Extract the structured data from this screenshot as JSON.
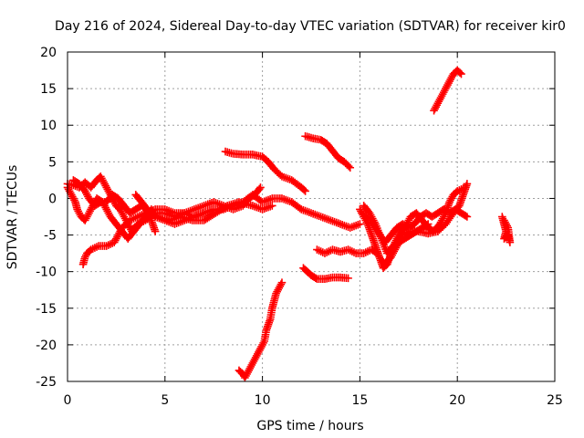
{
  "chart_data": {
    "type": "scatter",
    "title": "Day 216 of 2024, Sidereal Day-to-day VTEC variation (SDTVAR) for receiver kir0",
    "xlabel": "GPS time / hours",
    "ylabel": "SDTVAR / TECUs",
    "xlim": [
      0,
      25
    ],
    "ylim": [
      -25,
      20
    ],
    "xticks": [
      0,
      5,
      10,
      15,
      20,
      25
    ],
    "yticks": [
      -25,
      -20,
      -15,
      -10,
      -5,
      0,
      5,
      10,
      15,
      20
    ],
    "grid": true,
    "marker": "+",
    "series": [
      {
        "name": "SDTVAR",
        "color": "#ff0000",
        "tracks": [
          [
            [
              0.0,
              2.0
            ],
            [
              0.3,
              1.8
            ],
            [
              0.6,
              1.5
            ],
            [
              0.9,
              2.2
            ],
            [
              1.2,
              1.5
            ],
            [
              1.5,
              2.5
            ],
            [
              1.7,
              3.0
            ],
            [
              1.9,
              2.0
            ],
            [
              2.1,
              1.0
            ],
            [
              2.3,
              0.0
            ],
            [
              2.5,
              -1.0
            ],
            [
              2.7,
              -1.5
            ],
            [
              3.0,
              -3.0
            ],
            [
              3.3,
              -4.5
            ],
            [
              3.6,
              -3.5
            ],
            [
              4.0,
              -3.0
            ],
            [
              4.5,
              -2.0
            ],
            [
              5.0,
              -2.0
            ],
            [
              5.5,
              -2.5
            ],
            [
              6.0,
              -2.0
            ],
            [
              6.5,
              -2.5
            ],
            [
              7.0,
              -2.0
            ],
            [
              7.5,
              -1.5
            ],
            [
              8.0,
              -1.5
            ],
            [
              8.5,
              -1.0
            ],
            [
              9.0,
              -0.5
            ],
            [
              9.5,
              0.5
            ],
            [
              10.0,
              -0.5
            ],
            [
              10.5,
              0.0
            ],
            [
              11.0,
              0.0
            ],
            [
              11.5,
              -0.5
            ],
            [
              12.0,
              -1.5
            ],
            [
              12.5,
              -2.0
            ],
            [
              13.0,
              -2.5
            ],
            [
              13.5,
              -3.0
            ],
            [
              14.0,
              -3.5
            ],
            [
              14.5,
              -4.0
            ],
            [
              15.0,
              -3.5
            ]
          ],
          [
            [
              0.0,
              1.5
            ],
            [
              0.2,
              0.5
            ],
            [
              0.4,
              -0.5
            ],
            [
              0.5,
              -1.5
            ],
            [
              0.7,
              -2.5
            ],
            [
              0.9,
              -3.0
            ],
            [
              1.1,
              -2.0
            ],
            [
              1.3,
              -1.0
            ],
            [
              1.5,
              0.0
            ],
            [
              1.8,
              -0.5
            ],
            [
              2.0,
              -1.5
            ],
            [
              2.2,
              -2.5
            ],
            [
              2.5,
              -3.5
            ],
            [
              2.8,
              -4.5
            ],
            [
              3.1,
              -5.5
            ],
            [
              3.4,
              -4.5
            ],
            [
              3.7,
              -3.5
            ],
            [
              4.0,
              -2.5
            ],
            [
              4.3,
              -1.5
            ],
            [
              4.5,
              -2.5
            ],
            [
              5.0,
              -3.0
            ],
            [
              5.5,
              -3.5
            ],
            [
              6.0,
              -3.0
            ],
            [
              6.5,
              -2.5
            ],
            [
              7.0,
              -2.0
            ]
          ],
          [
            [
              0.3,
              2.5
            ],
            [
              0.6,
              2.0
            ],
            [
              0.9,
              1.0
            ],
            [
              1.1,
              0.0
            ],
            [
              1.4,
              -1.0
            ],
            [
              1.7,
              -0.5
            ],
            [
              2.0,
              -0.5
            ],
            [
              2.3,
              0.5
            ],
            [
              2.6,
              0.0
            ],
            [
              2.9,
              -1.0
            ],
            [
              3.2,
              -2.0
            ],
            [
              3.5,
              -1.5
            ],
            [
              3.8,
              -1.0
            ],
            [
              4.2,
              -2.0
            ],
            [
              4.6,
              -2.5
            ],
            [
              5.2,
              -3.0
            ],
            [
              5.8,
              -2.5
            ],
            [
              6.4,
              -3.0
            ],
            [
              7.0,
              -3.0
            ],
            [
              7.6,
              -2.0
            ],
            [
              8.2,
              -1.0
            ],
            [
              8.8,
              -0.5
            ],
            [
              9.5,
              -1.0
            ],
            [
              10.0,
              -1.5
            ],
            [
              10.5,
              -1.0
            ]
          ],
          [
            [
              0.8,
              -9.0
            ],
            [
              0.9,
              -8.0
            ],
            [
              1.0,
              -7.5
            ],
            [
              1.2,
              -7.0
            ],
            [
              1.6,
              -6.5
            ],
            [
              2.0,
              -6.5
            ],
            [
              2.4,
              -6.0
            ],
            [
              2.6,
              -5.0
            ],
            [
              2.8,
              -4.0
            ],
            [
              3.2,
              -3.0
            ],
            [
              3.6,
              -2.5
            ],
            [
              4.0,
              -2.0
            ],
            [
              4.5,
              -1.5
            ],
            [
              5.0,
              -1.5
            ],
            [
              5.5,
              -2.0
            ],
            [
              6.0,
              -2.0
            ],
            [
              6.5,
              -1.5
            ],
            [
              7.0,
              -1.0
            ],
            [
              7.5,
              -0.5
            ],
            [
              8.0,
              -1.0
            ],
            [
              8.5,
              -1.5
            ],
            [
              9.0,
              -1.0
            ],
            [
              9.3,
              0.0
            ],
            [
              9.6,
              0.5
            ],
            [
              9.9,
              1.5
            ]
          ],
          [
            [
              3.5,
              0.5
            ],
            [
              3.8,
              -0.5
            ],
            [
              4.1,
              -1.5
            ],
            [
              4.3,
              -3.0
            ],
            [
              4.5,
              -4.5
            ]
          ],
          [
            [
              8.1,
              6.4
            ],
            [
              8.5,
              6.1
            ],
            [
              9.0,
              6.0
            ],
            [
              9.5,
              6.0
            ],
            [
              10.0,
              5.7
            ],
            [
              10.3,
              5.0
            ],
            [
              10.6,
              4.0
            ],
            [
              11.0,
              3.0
            ],
            [
              11.5,
              2.5
            ],
            [
              12.0,
              1.5
            ],
            [
              12.2,
              1.0
            ]
          ],
          [
            [
              8.8,
              -23.5
            ],
            [
              9.0,
              -24.0
            ],
            [
              9.1,
              -24.5
            ],
            [
              9.3,
              -23.5
            ],
            [
              9.5,
              -22.5
            ],
            [
              9.7,
              -21.5
            ],
            [
              9.9,
              -20.5
            ],
            [
              10.1,
              -19.5
            ],
            [
              10.2,
              -18.0
            ],
            [
              10.4,
              -16.5
            ],
            [
              10.5,
              -15.0
            ],
            [
              10.6,
              -14.0
            ],
            [
              10.7,
              -13.0
            ],
            [
              10.9,
              -12.0
            ],
            [
              11.0,
              -11.5
            ]
          ],
          [
            [
              12.2,
              8.5
            ],
            [
              12.6,
              8.2
            ],
            [
              13.0,
              8.0
            ],
            [
              13.3,
              7.5
            ],
            [
              13.6,
              6.5
            ],
            [
              13.9,
              5.5
            ],
            [
              14.2,
              5.0
            ],
            [
              14.5,
              4.2
            ]
          ],
          [
            [
              12.1,
              -9.5
            ],
            [
              12.3,
              -10.0
            ],
            [
              12.5,
              -10.5
            ],
            [
              12.8,
              -11.0
            ],
            [
              13.2,
              -11.0
            ],
            [
              13.6,
              -10.8
            ],
            [
              14.0,
              -10.8
            ],
            [
              14.4,
              -10.9
            ]
          ],
          [
            [
              12.8,
              -7.0
            ],
            [
              13.2,
              -7.5
            ],
            [
              13.6,
              -7.0
            ],
            [
              14.0,
              -7.3
            ],
            [
              14.4,
              -7.0
            ],
            [
              14.8,
              -7.5
            ],
            [
              15.2,
              -7.5
            ],
            [
              15.6,
              -7.0
            ],
            [
              15.9,
              -7.5
            ],
            [
              16.1,
              -8.5
            ],
            [
              16.3,
              -9.0
            ],
            [
              16.6,
              -8.0
            ],
            [
              16.9,
              -6.5
            ],
            [
              17.2,
              -5.0
            ],
            [
              17.6,
              -4.5
            ],
            [
              18.0,
              -4.5
            ],
            [
              18.5,
              -4.8
            ],
            [
              19.0,
              -4.5
            ],
            [
              19.4,
              -3.5
            ],
            [
              19.8,
              -2.0
            ],
            [
              20.1,
              -1.0
            ],
            [
              20.3,
              0.5
            ],
            [
              20.5,
              2.0
            ]
          ],
          [
            [
              15.0,
              -1.5
            ],
            [
              15.2,
              -2.5
            ],
            [
              15.4,
              -3.5
            ],
            [
              15.6,
              -5.0
            ],
            [
              15.8,
              -6.5
            ],
            [
              16.0,
              -8.0
            ],
            [
              16.2,
              -9.5
            ],
            [
              16.4,
              -9.0
            ],
            [
              16.6,
              -7.5
            ],
            [
              16.8,
              -6.0
            ],
            [
              17.0,
              -5.0
            ],
            [
              17.3,
              -4.0
            ],
            [
              17.6,
              -2.5
            ],
            [
              17.9,
              -2.0
            ],
            [
              18.2,
              -3.0
            ],
            [
              18.5,
              -4.0
            ],
            [
              18.8,
              -4.5
            ],
            [
              19.1,
              -3.5
            ],
            [
              19.4,
              -2.0
            ],
            [
              19.6,
              -0.5
            ],
            [
              19.8,
              0.5
            ],
            [
              20.0,
              1.0
            ],
            [
              20.4,
              1.5
            ]
          ],
          [
            [
              15.1,
              -2.0
            ],
            [
              15.5,
              -3.0
            ],
            [
              15.9,
              -4.5
            ],
            [
              16.3,
              -6.0
            ],
            [
              16.6,
              -5.0
            ],
            [
              16.9,
              -4.0
            ],
            [
              17.2,
              -3.5
            ],
            [
              17.5,
              -4.0
            ],
            [
              17.8,
              -3.5
            ],
            [
              18.1,
              -2.5
            ],
            [
              18.4,
              -2.0
            ],
            [
              18.7,
              -2.5
            ],
            [
              19.0,
              -2.0
            ],
            [
              19.3,
              -1.5
            ],
            [
              19.6,
              -2.0
            ],
            [
              19.9,
              -1.5
            ],
            [
              20.2,
              -2.0
            ],
            [
              20.5,
              -2.5
            ]
          ],
          [
            [
              15.2,
              -1.0
            ],
            [
              15.5,
              -2.0
            ],
            [
              15.8,
              -3.5
            ],
            [
              16.1,
              -5.5
            ],
            [
              16.4,
              -7.5
            ],
            [
              16.7,
              -6.5
            ],
            [
              17.0,
              -6.0
            ],
            [
              17.3,
              -5.5
            ],
            [
              17.6,
              -5.0
            ],
            [
              17.9,
              -4.5
            ],
            [
              18.2,
              -4.0
            ],
            [
              18.5,
              -3.5
            ]
          ],
          [
            [
              18.8,
              12.0
            ],
            [
              19.0,
              13.0
            ],
            [
              19.2,
              14.0
            ],
            [
              19.4,
              15.0
            ],
            [
              19.6,
              16.0
            ],
            [
              19.8,
              17.0
            ],
            [
              20.0,
              17.5
            ],
            [
              20.2,
              17.0
            ]
          ],
          [
            [
              22.3,
              -2.5
            ],
            [
              22.4,
              -3.5
            ],
            [
              22.5,
              -4.5
            ],
            [
              22.4,
              -5.5
            ],
            [
              22.6,
              -5.0
            ],
            [
              22.7,
              -6.0
            ],
            [
              22.6,
              -4.0
            ],
            [
              22.4,
              -3.0
            ]
          ]
        ]
      }
    ]
  }
}
